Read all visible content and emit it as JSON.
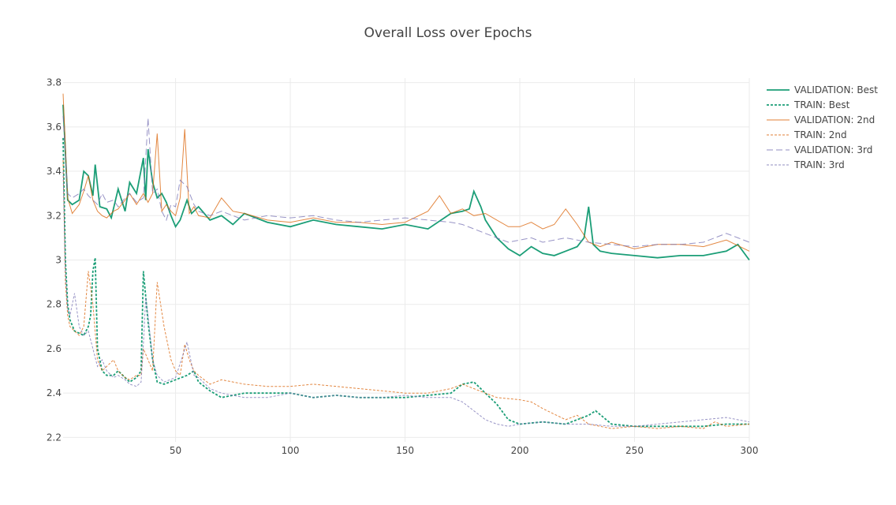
{
  "chart_data": {
    "type": "line",
    "title": "Overall Loss over Epochs",
    "xlabel": "",
    "ylabel": "",
    "xlim": [
      1,
      300
    ],
    "ylim": [
      2.18,
      3.82
    ],
    "x_ticks": [
      50,
      100,
      150,
      200,
      250,
      300
    ],
    "y_ticks": [
      2.2,
      2.4,
      2.6,
      2.8,
      3.0,
      3.2,
      3.4,
      3.6,
      3.8
    ],
    "y_tick_labels": [
      "2.2",
      "2.4",
      "2.6",
      "2.8",
      "3",
      "3.2",
      "3.4",
      "3.6",
      "3.8"
    ],
    "grid": true,
    "legend_position": "top-right",
    "series": [
      {
        "name": "VALIDATION: Best",
        "color": "#1b9e77",
        "dash": "solid",
        "x": [
          1,
          3,
          5,
          8,
          10,
          12,
          14,
          15,
          17,
          20,
          22,
          25,
          28,
          30,
          33,
          36,
          37,
          38,
          40,
          42,
          44,
          46,
          48,
          50,
          52,
          55,
          57,
          60,
          65,
          70,
          75,
          80,
          90,
          100,
          110,
          120,
          130,
          140,
          150,
          160,
          170,
          175,
          178,
          180,
          183,
          185,
          190,
          195,
          200,
          205,
          210,
          215,
          220,
          225,
          228,
          230,
          232,
          235,
          240,
          250,
          260,
          270,
          280,
          290,
          295,
          300
        ],
        "y": [
          3.7,
          3.27,
          3.25,
          3.27,
          3.4,
          3.38,
          3.29,
          3.43,
          3.24,
          3.23,
          3.19,
          3.32,
          3.22,
          3.35,
          3.3,
          3.46,
          3.27,
          3.5,
          3.35,
          3.28,
          3.3,
          3.26,
          3.2,
          3.15,
          3.18,
          3.27,
          3.21,
          3.24,
          3.18,
          3.2,
          3.16,
          3.21,
          3.17,
          3.15,
          3.18,
          3.16,
          3.15,
          3.14,
          3.16,
          3.14,
          3.21,
          3.22,
          3.23,
          3.31,
          3.24,
          3.18,
          3.1,
          3.05,
          3.02,
          3.06,
          3.03,
          3.02,
          3.04,
          3.06,
          3.1,
          3.24,
          3.07,
          3.04,
          3.03,
          3.02,
          3.01,
          3.02,
          3.02,
          3.04,
          3.07,
          3.0
        ]
      },
      {
        "name": "TRAIN: Best",
        "color": "#1b9e77",
        "dash": "dot",
        "x": [
          1,
          2,
          3,
          4,
          6,
          8,
          10,
          12,
          13,
          14,
          15,
          16,
          18,
          20,
          23,
          25,
          28,
          30,
          33,
          35,
          36,
          38,
          40,
          42,
          45,
          50,
          55,
          58,
          60,
          65,
          70,
          80,
          90,
          100,
          110,
          120,
          130,
          140,
          150,
          160,
          170,
          175,
          180,
          185,
          190,
          195,
          200,
          210,
          220,
          230,
          233,
          240,
          250,
          260,
          270,
          280,
          290,
          300
        ],
        "y": [
          3.55,
          3.0,
          2.8,
          2.73,
          2.68,
          2.67,
          2.66,
          2.7,
          2.75,
          2.95,
          3.01,
          2.6,
          2.5,
          2.48,
          2.48,
          2.5,
          2.47,
          2.45,
          2.47,
          2.5,
          2.95,
          2.72,
          2.55,
          2.45,
          2.44,
          2.46,
          2.48,
          2.5,
          2.45,
          2.41,
          2.38,
          2.4,
          2.4,
          2.4,
          2.38,
          2.39,
          2.38,
          2.38,
          2.38,
          2.39,
          2.4,
          2.44,
          2.45,
          2.4,
          2.35,
          2.28,
          2.26,
          2.27,
          2.26,
          2.3,
          2.32,
          2.26,
          2.25,
          2.25,
          2.25,
          2.25,
          2.26,
          2.26
        ]
      },
      {
        "name": "VALIDATION: 2nd",
        "color": "#d95f02",
        "dash": "solid",
        "x": [
          1,
          3,
          5,
          8,
          10,
          12,
          14,
          16,
          18,
          20,
          23,
          25,
          28,
          30,
          33,
          36,
          38,
          40,
          42,
          44,
          46,
          48,
          50,
          52,
          54,
          56,
          58,
          60,
          65,
          70,
          75,
          80,
          90,
          100,
          110,
          120,
          130,
          140,
          150,
          160,
          165,
          170,
          175,
          180,
          185,
          190,
          195,
          200,
          205,
          210,
          215,
          220,
          225,
          230,
          235,
          240,
          250,
          260,
          270,
          280,
          290,
          300
        ],
        "y": [
          3.75,
          3.28,
          3.21,
          3.25,
          3.31,
          3.38,
          3.27,
          3.22,
          3.2,
          3.19,
          3.22,
          3.23,
          3.27,
          3.3,
          3.25,
          3.3,
          3.26,
          3.3,
          3.57,
          3.22,
          3.25,
          3.22,
          3.2,
          3.28,
          3.59,
          3.21,
          3.24,
          3.2,
          3.19,
          3.28,
          3.22,
          3.21,
          3.18,
          3.17,
          3.19,
          3.17,
          3.17,
          3.16,
          3.17,
          3.22,
          3.29,
          3.21,
          3.23,
          3.2,
          3.21,
          3.18,
          3.15,
          3.15,
          3.17,
          3.14,
          3.16,
          3.23,
          3.16,
          3.08,
          3.06,
          3.08,
          3.05,
          3.07,
          3.07,
          3.06,
          3.09,
          3.04
        ]
      },
      {
        "name": "TRAIN: 2nd",
        "color": "#d95f02",
        "dash": "dot",
        "x": [
          1,
          2,
          3,
          4,
          6,
          8,
          10,
          12,
          14,
          16,
          18,
          20,
          23,
          25,
          28,
          30,
          33,
          35,
          36,
          38,
          40,
          42,
          45,
          48,
          50,
          52,
          54,
          56,
          58,
          60,
          65,
          70,
          75,
          80,
          90,
          100,
          110,
          120,
          130,
          140,
          150,
          160,
          170,
          175,
          180,
          185,
          190,
          200,
          205,
          210,
          220,
          225,
          230,
          240,
          250,
          260,
          270,
          280,
          285,
          290,
          300
        ],
        "y": [
          3.45,
          2.9,
          2.75,
          2.7,
          2.68,
          2.66,
          2.7,
          2.95,
          2.8,
          2.55,
          2.5,
          2.52,
          2.55,
          2.5,
          2.47,
          2.46,
          2.48,
          2.48,
          2.6,
          2.55,
          2.5,
          2.9,
          2.7,
          2.55,
          2.5,
          2.48,
          2.62,
          2.55,
          2.5,
          2.48,
          2.44,
          2.46,
          2.45,
          2.44,
          2.43,
          2.43,
          2.44,
          2.43,
          2.42,
          2.41,
          2.4,
          2.4,
          2.42,
          2.44,
          2.42,
          2.4,
          2.38,
          2.37,
          2.36,
          2.33,
          2.28,
          2.3,
          2.26,
          2.24,
          2.25,
          2.24,
          2.25,
          2.24,
          2.27,
          2.25,
          2.26
        ]
      },
      {
        "name": "VALIDATION: 3rd",
        "color": "#7570b3",
        "dash": "longdash",
        "x": [
          1,
          3,
          5,
          8,
          10,
          12,
          14,
          16,
          18,
          20,
          23,
          25,
          28,
          30,
          33,
          36,
          38,
          40,
          42,
          44,
          46,
          48,
          50,
          52,
          55,
          58,
          60,
          65,
          70,
          75,
          80,
          90,
          100,
          110,
          120,
          130,
          140,
          150,
          160,
          170,
          175,
          180,
          185,
          190,
          195,
          200,
          205,
          210,
          215,
          220,
          230,
          240,
          250,
          260,
          270,
          280,
          285,
          290,
          295,
          300
        ],
        "y": [
          3.65,
          3.3,
          3.28,
          3.3,
          3.32,
          3.29,
          3.27,
          3.25,
          3.3,
          3.26,
          3.27,
          3.24,
          3.28,
          3.3,
          3.26,
          3.28,
          3.64,
          3.3,
          3.32,
          3.22,
          3.18,
          3.25,
          3.24,
          3.36,
          3.33,
          3.25,
          3.22,
          3.2,
          3.22,
          3.2,
          3.18,
          3.2,
          3.19,
          3.2,
          3.18,
          3.17,
          3.18,
          3.19,
          3.18,
          3.17,
          3.16,
          3.14,
          3.12,
          3.1,
          3.08,
          3.09,
          3.1,
          3.08,
          3.09,
          3.1,
          3.08,
          3.07,
          3.06,
          3.07,
          3.07,
          3.08,
          3.1,
          3.12,
          3.1,
          3.08
        ]
      },
      {
        "name": "TRAIN: 3rd",
        "color": "#7570b3",
        "dash": "dot",
        "x": [
          1,
          2,
          3,
          4,
          6,
          8,
          10,
          12,
          14,
          16,
          18,
          20,
          23,
          25,
          28,
          30,
          33,
          35,
          36,
          37,
          38,
          40,
          42,
          45,
          50,
          55,
          58,
          60,
          65,
          70,
          80,
          90,
          100,
          110,
          120,
          130,
          140,
          150,
          160,
          170,
          175,
          180,
          185,
          190,
          195,
          200,
          210,
          220,
          230,
          240,
          250,
          260,
          270,
          280,
          290,
          300
        ],
        "y": [
          3.4,
          2.95,
          2.78,
          2.75,
          2.85,
          2.7,
          2.66,
          2.68,
          2.6,
          2.52,
          2.55,
          2.5,
          2.47,
          2.48,
          2.46,
          2.44,
          2.43,
          2.45,
          2.62,
          2.83,
          2.75,
          2.55,
          2.48,
          2.45,
          2.47,
          2.63,
          2.48,
          2.47,
          2.42,
          2.4,
          2.38,
          2.38,
          2.4,
          2.38,
          2.39,
          2.38,
          2.38,
          2.39,
          2.38,
          2.38,
          2.36,
          2.32,
          2.28,
          2.26,
          2.25,
          2.26,
          2.27,
          2.26,
          2.26,
          2.25,
          2.25,
          2.26,
          2.27,
          2.28,
          2.29,
          2.27
        ]
      }
    ]
  }
}
